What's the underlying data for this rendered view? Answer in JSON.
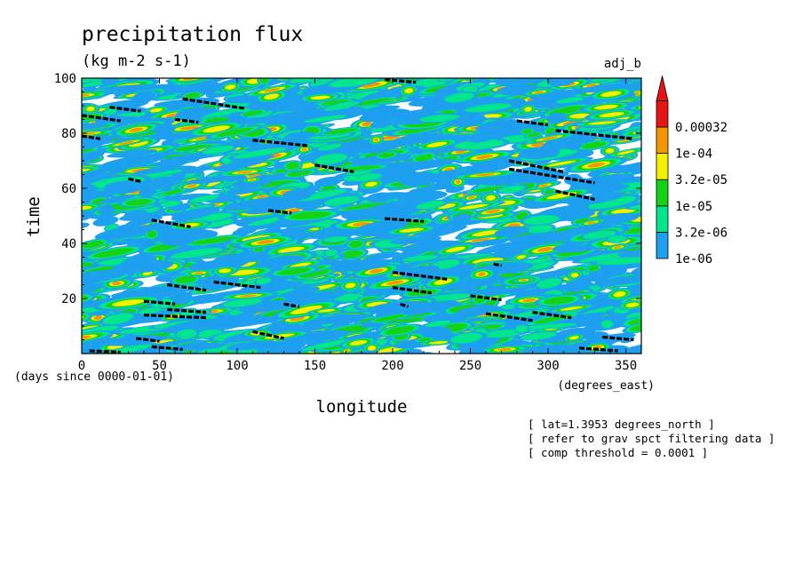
{
  "chart_data": {
    "type": "heatmap",
    "title": "precipitation flux",
    "units": "(kg m-2 s-1)",
    "experiment": "adj_b",
    "xlabel": "longitude",
    "x_units": "(degrees_east)",
    "ylabel": "time",
    "y_units": "(days since 0000-01-01)",
    "xlim": [
      0,
      360
    ],
    "ylim": [
      0,
      100
    ],
    "x_ticks": [
      0,
      50,
      100,
      150,
      200,
      250,
      300,
      350
    ],
    "y_ticks": [
      20,
      40,
      60,
      80,
      100
    ],
    "colorbar": {
      "levels": [
        "1e-06",
        "3.2e-06",
        "1e-05",
        "3.2e-05",
        "1e-04",
        "0.00032"
      ],
      "colors": [
        "#1ea0f0",
        "#00e68c",
        "#14d214",
        "#f5f000",
        "#f59600",
        "#e61414"
      ],
      "extend_max": true
    },
    "overlay": {
      "description": "black dashed segments where filtered field exceeds threshold",
      "segments": [
        {
          "lon": [
            0,
            25
          ],
          "time": [
            86.5,
            84.5
          ]
        },
        {
          "lon": [
            0,
            12
          ],
          "time": [
            79,
            78
          ]
        },
        {
          "lon": [
            5,
            25
          ],
          "time": [
            1,
            0.5
          ]
        },
        {
          "lon": [
            18,
            38
          ],
          "time": [
            89.5,
            88
          ]
        },
        {
          "lon": [
            30,
            38
          ],
          "time": [
            63.5,
            62.5
          ]
        },
        {
          "lon": [
            35,
            50
          ],
          "time": [
            5.5,
            4.5
          ]
        },
        {
          "lon": [
            40,
            60
          ],
          "time": [
            19,
            18
          ]
        },
        {
          "lon": [
            40,
            80
          ],
          "time": [
            14,
            13
          ]
        },
        {
          "lon": [
            45,
            65
          ],
          "time": [
            2.5,
            1.5
          ]
        },
        {
          "lon": [
            45,
            70
          ],
          "time": [
            48.5,
            46
          ]
        },
        {
          "lon": [
            55,
            80
          ],
          "time": [
            25,
            23
          ]
        },
        {
          "lon": [
            55,
            80
          ],
          "time": [
            16,
            15
          ]
        },
        {
          "lon": [
            60,
            75
          ],
          "time": [
            85,
            84
          ]
        },
        {
          "lon": [
            65,
            105
          ],
          "time": [
            92.5,
            89
          ]
        },
        {
          "lon": [
            85,
            115
          ],
          "time": [
            26,
            24
          ]
        },
        {
          "lon": [
            110,
            145
          ],
          "time": [
            77.5,
            75.5
          ]
        },
        {
          "lon": [
            110,
            130
          ],
          "time": [
            8,
            5.5
          ]
        },
        {
          "lon": [
            120,
            135
          ],
          "time": [
            52,
            51
          ]
        },
        {
          "lon": [
            130,
            140
          ],
          "time": [
            18,
            17
          ]
        },
        {
          "lon": [
            150,
            175
          ],
          "time": [
            68.5,
            66
          ]
        },
        {
          "lon": [
            195,
            215
          ],
          "time": [
            99.5,
            98.5
          ]
        },
        {
          "lon": [
            195,
            220
          ],
          "time": [
            49,
            48
          ]
        },
        {
          "lon": [
            200,
            235
          ],
          "time": [
            29.5,
            27
          ]
        },
        {
          "lon": [
            200,
            225
          ],
          "time": [
            24,
            22
          ]
        },
        {
          "lon": [
            205,
            210
          ],
          "time": [
            18,
            17
          ]
        },
        {
          "lon": [
            250,
            270
          ],
          "time": [
            21,
            19.5
          ]
        },
        {
          "lon": [
            265,
            270
          ],
          "time": [
            32.5,
            32
          ]
        },
        {
          "lon": [
            260,
            290
          ],
          "time": [
            14.5,
            12
          ]
        },
        {
          "lon": [
            275,
            310
          ],
          "time": [
            70,
            66
          ]
        },
        {
          "lon": [
            275,
            330
          ],
          "time": [
            67,
            62
          ]
        },
        {
          "lon": [
            280,
            300
          ],
          "time": [
            84.5,
            83
          ]
        },
        {
          "lon": [
            290,
            315
          ],
          "time": [
            15,
            13
          ]
        },
        {
          "lon": [
            305,
            355
          ],
          "time": [
            81,
            78
          ]
        },
        {
          "lon": [
            305,
            330
          ],
          "time": [
            59,
            56
          ]
        },
        {
          "lon": [
            320,
            345
          ],
          "time": [
            2,
            1
          ]
        },
        {
          "lon": [
            335,
            355
          ],
          "time": [
            6,
            5
          ]
        }
      ]
    }
  },
  "notes": [
    "[ lat=1.3953 degrees_north ]",
    "[ refer to grav spct filtering data ]",
    "[ comp threshold = 0.0001 ]"
  ]
}
